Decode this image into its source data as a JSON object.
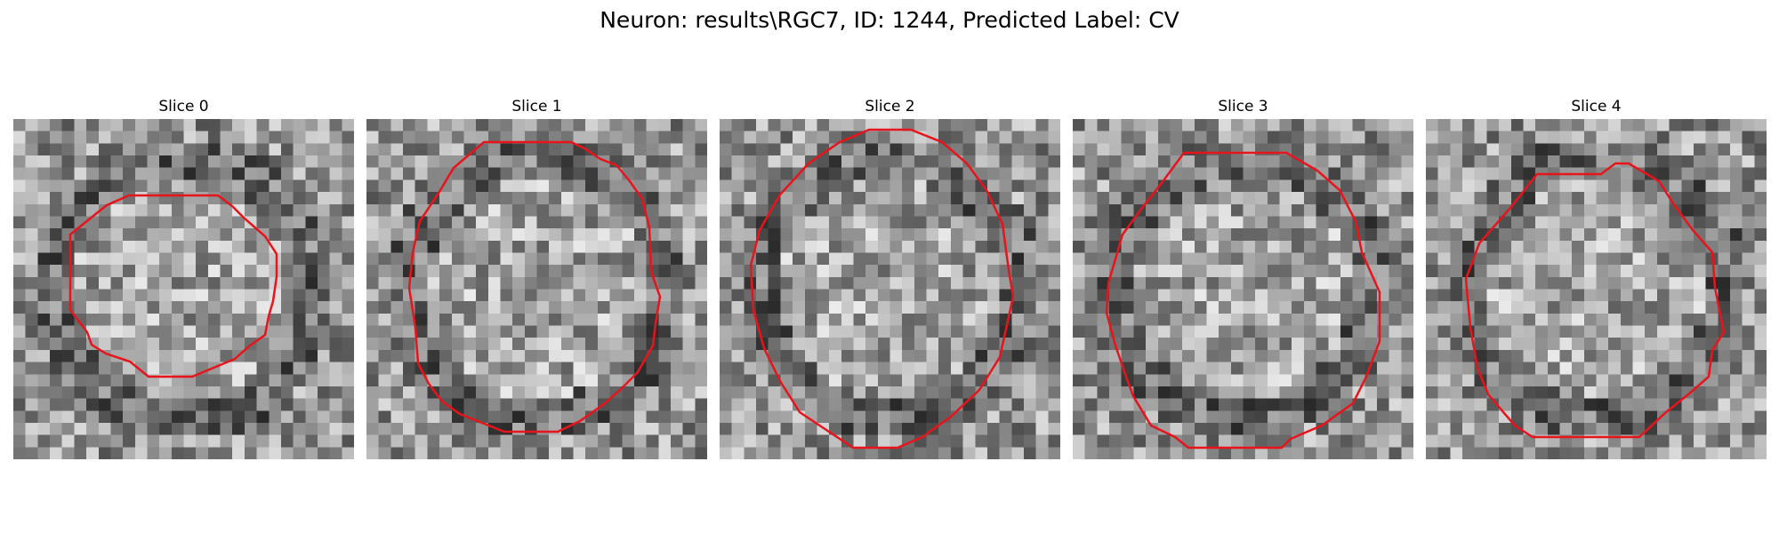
{
  "title": "Neuron: results\\RGC7, ID: 1244, Predicted Label: CV",
  "contour_color": "#e8141c",
  "slices": [
    {
      "label": "Slice 0"
    },
    {
      "label": "Slice 1"
    },
    {
      "label": "Slice 2"
    },
    {
      "label": "Slice 3"
    },
    {
      "label": "Slice 4"
    }
  ]
}
